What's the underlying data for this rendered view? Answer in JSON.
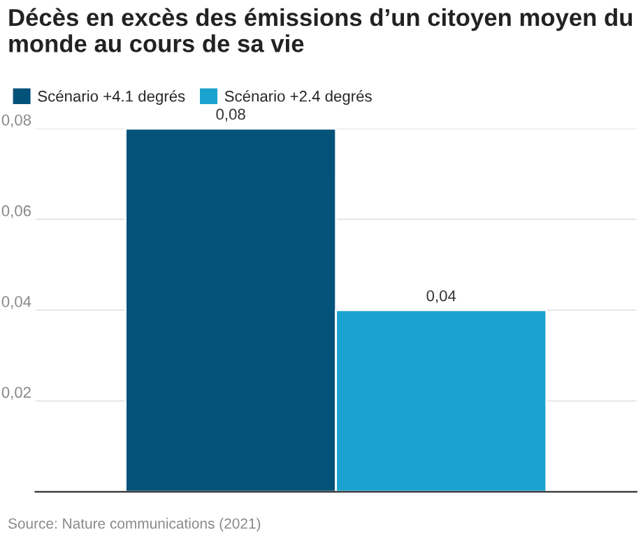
{
  "chart_data": {
    "type": "bar",
    "title": "Décès en excès des émissions d’un citoyen moyen du monde au cours de sa vie",
    "categories": [
      null
    ],
    "series": [
      {
        "name": "Scénario +4.1 degrés",
        "color": "#03527a",
        "values": [
          0.08
        ],
        "value_labels": [
          "0,08"
        ]
      },
      {
        "name": "Scénario +2.4 degrés",
        "color": "#1aa3cf",
        "values": [
          0.04
        ],
        "value_labels": [
          "0,04"
        ]
      }
    ],
    "ylim": [
      0,
      0.08
    ],
    "yticks": [
      {
        "value": 0.02,
        "label": "0,02"
      },
      {
        "value": 0.04,
        "label": "0,04"
      },
      {
        "value": 0.06,
        "label": "0,06"
      },
      {
        "value": 0.08,
        "label": "0,08"
      }
    ],
    "grid": "y",
    "legend": "top left",
    "annotations": [
      "Source: Nature communications (2021)"
    ]
  }
}
